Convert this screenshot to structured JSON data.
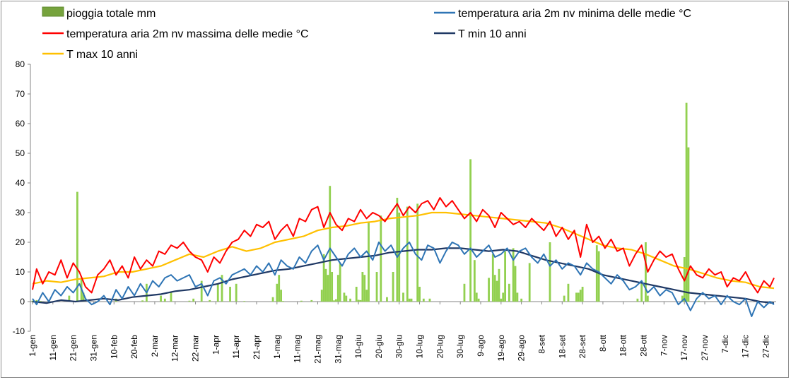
{
  "chart_data": {
    "type": "bar+line",
    "title": "",
    "xlabel": "",
    "ylabel": "",
    "ylim": [
      -10,
      80
    ],
    "yticks": [
      -10,
      0,
      10,
      20,
      30,
      40,
      50,
      60,
      70,
      80
    ],
    "grid": false,
    "legend_position": "top",
    "x_unit": "day of year (1-365)",
    "x_tick_labels": [
      "1-gen",
      "11-gen",
      "21-gen",
      "31-gen",
      "10-feb",
      "20-feb",
      "2-mar",
      "12-mar",
      "22-mar",
      "1-apr",
      "11-apr",
      "21-apr",
      "1-mag",
      "11-mag",
      "21-mag",
      "31-mag",
      "10-giu",
      "20-giu",
      "30-giu",
      "10-lug",
      "20-lug",
      "30-lug",
      "9-ago",
      "19-ago",
      "29-ago",
      "8-set",
      "18-set",
      "28-set",
      "8-ott",
      "18-ott",
      "28-ott",
      "7-nov",
      "17-nov",
      "27-nov",
      "7-dic",
      "17-dic",
      "27-dic"
    ],
    "x_tick_days": [
      1,
      11,
      21,
      31,
      41,
      51,
      61,
      71,
      81,
      91,
      101,
      111,
      121,
      131,
      141,
      151,
      161,
      171,
      181,
      191,
      201,
      211,
      221,
      231,
      241,
      251,
      261,
      271,
      281,
      291,
      301,
      311,
      321,
      331,
      341,
      351,
      361
    ],
    "rain": {
      "name": "pioggia totale mm",
      "color": "#92d050",
      "days": [
        1,
        3,
        5,
        19,
        23,
        25,
        26,
        42,
        55,
        57,
        64,
        66,
        69,
        78,
        80,
        84,
        88,
        92,
        94,
        98,
        101,
        105,
        119,
        121,
        122,
        123,
        124,
        133,
        138,
        143,
        144,
        145,
        146,
        147,
        148,
        149,
        150,
        151,
        152,
        154,
        155,
        157,
        160,
        161,
        162,
        163,
        164,
        165,
        166,
        170,
        172,
        175,
        178,
        180,
        181,
        183,
        185,
        186,
        187,
        190,
        191,
        193,
        196,
        213,
        216,
        218,
        219,
        220,
        225,
        227,
        228,
        229,
        230,
        231,
        232,
        233,
        235,
        237,
        238,
        239,
        241,
        245,
        255,
        262,
        264,
        268,
        269,
        270,
        271,
        278,
        279,
        298,
        300,
        302,
        303,
        320,
        321,
        322,
        323,
        328
      ],
      "values": [
        0.3,
        0.5,
        0.2,
        2,
        37,
        8,
        3,
        1,
        0.4,
        6,
        2,
        1,
        3,
        0.3,
        1,
        7,
        0.5,
        6,
        9,
        5,
        6,
        0.2,
        1.5,
        6,
        9,
        4,
        0.2,
        0.3,
        0.5,
        4,
        16,
        11,
        9,
        39,
        10,
        0.4,
        0.8,
        9,
        13,
        3,
        2,
        1,
        5,
        0.6,
        0.5,
        10,
        9,
        4,
        27,
        10,
        29,
        1.5,
        10,
        35,
        30,
        3,
        32,
        1,
        1,
        33,
        5,
        1,
        1,
        6,
        48,
        14,
        3,
        1,
        8,
        16,
        9,
        7,
        11,
        1,
        3,
        17,
        6,
        18,
        12,
        3,
        1,
        13,
        20,
        2,
        6,
        3,
        3,
        4,
        5,
        19,
        17,
        1,
        6,
        20,
        2,
        2,
        15,
        67,
        52,
        0.3
      ],
      "tick_labels_y": [
        "-10",
        "0",
        "10",
        "20",
        "30",
        "40",
        "50",
        "60",
        "70",
        "80"
      ]
    },
    "series": [
      {
        "name": "temperatura aria 2m nv minima delle medie °C",
        "color": "#2f75b5",
        "width": 2,
        "x": [
          1,
          3,
          6,
          9,
          12,
          15,
          18,
          21,
          24,
          27,
          30,
          33,
          36,
          39,
          42,
          45,
          48,
          51,
          54,
          57,
          60,
          63,
          66,
          69,
          72,
          75,
          78,
          81,
          84,
          87,
          90,
          93,
          96,
          99,
          102,
          105,
          108,
          111,
          114,
          117,
          120,
          123,
          126,
          129,
          132,
          135,
          138,
          141,
          144,
          147,
          150,
          153,
          156,
          159,
          162,
          165,
          168,
          171,
          174,
          177,
          180,
          183,
          186,
          189,
          192,
          195,
          198,
          201,
          204,
          207,
          210,
          213,
          216,
          219,
          222,
          225,
          228,
          231,
          234,
          237,
          240,
          243,
          246,
          249,
          252,
          255,
          258,
          261,
          264,
          267,
          270,
          273,
          276,
          279,
          282,
          285,
          288,
          291,
          294,
          297,
          300,
          303,
          306,
          309,
          312,
          315,
          318,
          321,
          324,
          327,
          330,
          333,
          336,
          339,
          342,
          345,
          348,
          351,
          354,
          357,
          360,
          363,
          365
        ],
        "y": [
          1,
          -1,
          3,
          0,
          4,
          2,
          5,
          3,
          6,
          1,
          -1,
          0,
          2,
          -1,
          4,
          1,
          5,
          2,
          6,
          3,
          7,
          5,
          8,
          9,
          7,
          8,
          9,
          5,
          6,
          2,
          7,
          8,
          6,
          9,
          10,
          11,
          9,
          12,
          10,
          13,
          9,
          14,
          12,
          11,
          15,
          13,
          17,
          19,
          14,
          18,
          15,
          12,
          16,
          18,
          15,
          17,
          14,
          20,
          17,
          19,
          15,
          18,
          20,
          16,
          14,
          19,
          18,
          13,
          17,
          20,
          19,
          16,
          18,
          15,
          17,
          19,
          15,
          16,
          18,
          14,
          17,
          18,
          15,
          13,
          16,
          12,
          14,
          11,
          13,
          12,
          9,
          13,
          11,
          10,
          8,
          6,
          9,
          7,
          4,
          5,
          7,
          3,
          5,
          2,
          4,
          3,
          -1,
          1,
          -3,
          1,
          3,
          1,
          2,
          -1,
          2,
          0,
          -1,
          1,
          -5,
          0,
          -2,
          0,
          -1
        ]
      },
      {
        "name": "temperatura aria 2m nv massima delle medie °C",
        "color": "#ff0000",
        "width": 2,
        "x": [
          1,
          3,
          6,
          9,
          12,
          15,
          18,
          21,
          24,
          27,
          30,
          33,
          36,
          39,
          42,
          45,
          48,
          51,
          54,
          57,
          60,
          63,
          66,
          69,
          72,
          75,
          78,
          81,
          84,
          87,
          90,
          93,
          96,
          99,
          102,
          105,
          108,
          111,
          114,
          117,
          120,
          123,
          126,
          129,
          132,
          135,
          138,
          141,
          144,
          147,
          150,
          153,
          156,
          159,
          162,
          165,
          168,
          171,
          174,
          177,
          180,
          183,
          186,
          189,
          192,
          195,
          198,
          201,
          204,
          207,
          210,
          213,
          216,
          219,
          222,
          225,
          228,
          231,
          234,
          237,
          240,
          243,
          246,
          249,
          252,
          255,
          258,
          261,
          264,
          267,
          270,
          273,
          276,
          279,
          282,
          285,
          288,
          291,
          294,
          297,
          300,
          303,
          306,
          309,
          312,
          315,
          318,
          321,
          324,
          327,
          330,
          333,
          336,
          339,
          342,
          345,
          348,
          351,
          354,
          357,
          360,
          363,
          365
        ],
        "y": [
          4,
          11,
          6,
          10,
          9,
          14,
          8,
          13,
          10,
          5,
          3,
          9,
          11,
          14,
          9,
          12,
          8,
          15,
          11,
          14,
          12,
          17,
          16,
          19,
          18,
          20,
          17,
          15,
          14,
          10,
          15,
          13,
          17,
          20,
          21,
          24,
          22,
          26,
          25,
          27,
          21,
          24,
          26,
          22,
          28,
          27,
          31,
          32,
          25,
          30,
          26,
          24,
          28,
          27,
          31,
          28,
          30,
          29,
          27,
          30,
          33,
          29,
          32,
          30,
          33,
          34,
          31,
          35,
          32,
          34,
          31,
          28,
          30,
          27,
          31,
          29,
          25,
          30,
          28,
          26,
          27,
          25,
          28,
          26,
          24,
          27,
          22,
          25,
          21,
          24,
          15,
          26,
          20,
          22,
          18,
          21,
          17,
          18,
          12,
          16,
          19,
          10,
          14,
          17,
          15,
          16,
          11,
          7,
          12,
          9,
          8,
          11,
          9,
          10,
          5,
          8,
          7,
          10,
          6,
          3,
          7,
          5,
          8
        ]
      },
      {
        "name": "T min 10 anni",
        "color": "#1f3864",
        "width": 2.2,
        "x": [
          1,
          8,
          15,
          22,
          29,
          36,
          43,
          50,
          57,
          64,
          71,
          78,
          85,
          92,
          99,
          106,
          113,
          120,
          127,
          134,
          141,
          148,
          155,
          162,
          169,
          176,
          183,
          190,
          197,
          204,
          211,
          218,
          225,
          232,
          239,
          246,
          253,
          260,
          267,
          274,
          281,
          288,
          295,
          302,
          309,
          316,
          323,
          330,
          337,
          344,
          351,
          358,
          365
        ],
        "y": [
          0,
          -0.5,
          0.5,
          0,
          0.5,
          1,
          0.5,
          1.5,
          2,
          2.5,
          3.5,
          4,
          5,
          6,
          7.5,
          8.5,
          9.5,
          10.5,
          11,
          12,
          13,
          14,
          14.5,
          15,
          15.5,
          16.5,
          17,
          17.5,
          17.5,
          18,
          18,
          17.5,
          17,
          17.5,
          17,
          15.5,
          14,
          13,
          12,
          11,
          9,
          8,
          7,
          6,
          5,
          4,
          3,
          2.5,
          2,
          1.5,
          1,
          0,
          -0.5
        ]
      },
      {
        "name": "T max 10 anni",
        "color": "#ffc000",
        "width": 2.2,
        "x": [
          1,
          8,
          15,
          22,
          29,
          36,
          43,
          50,
          57,
          64,
          71,
          78,
          85,
          92,
          99,
          106,
          113,
          120,
          127,
          134,
          141,
          148,
          155,
          162,
          169,
          176,
          183,
          190,
          197,
          204,
          211,
          218,
          225,
          232,
          239,
          246,
          253,
          260,
          267,
          274,
          281,
          288,
          295,
          302,
          309,
          316,
          323,
          330,
          337,
          344,
          351,
          358,
          365
        ],
        "y": [
          6,
          7,
          6.5,
          7.5,
          8,
          8.5,
          10,
          10,
          11,
          12,
          14,
          16,
          15,
          17,
          18.5,
          17,
          18,
          20,
          21,
          22,
          24,
          25,
          25.5,
          26.5,
          27,
          28,
          28.5,
          29,
          30,
          30,
          29.5,
          29,
          28.5,
          28,
          27.5,
          27,
          26.5,
          25,
          23,
          21,
          19,
          18,
          17.5,
          16,
          14,
          12,
          11,
          9.5,
          8,
          7,
          6.5,
          5,
          4.5
        ]
      }
    ]
  }
}
